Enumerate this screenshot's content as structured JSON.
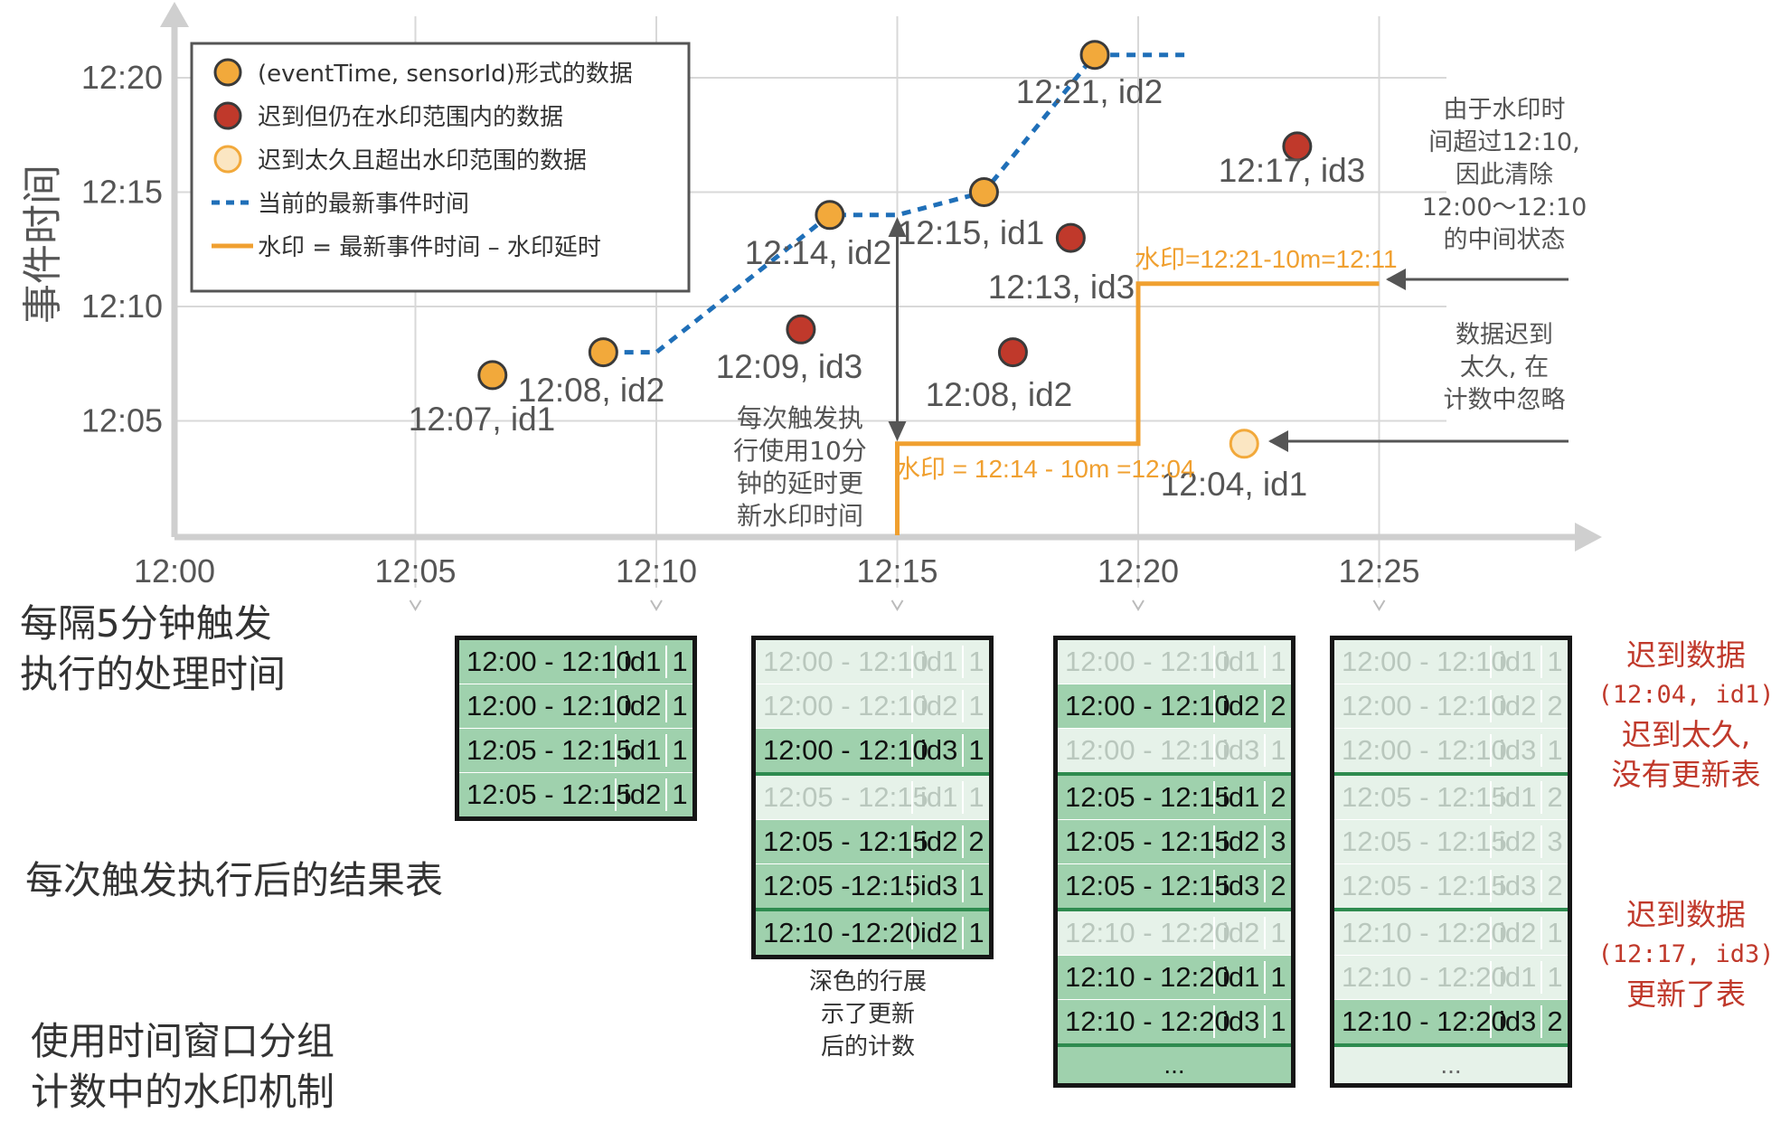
{
  "y_axis_title": "事件时间",
  "y_ticks": [
    "12:05",
    "12:10",
    "12:15",
    "12:20"
  ],
  "x_ticks": [
    "12:00",
    "12:05",
    "12:10",
    "12:15",
    "12:20",
    "12:25"
  ],
  "legend": [
    {
      "label": "(eventTime, sensorId)形式的数据",
      "marker": "orange-dot"
    },
    {
      "label": "迟到但仍在水印范围内的数据",
      "marker": "red-dot"
    },
    {
      "label": "迟到太久且超出水印范围的数据",
      "marker": "pale-dot"
    },
    {
      "label": "当前的最新事件时间",
      "marker": "blue-dashed"
    },
    {
      "label": "水印 = 最新事件时间 – 水印延时",
      "marker": "orange-line"
    }
  ],
  "colors": {
    "on_time": "#f2a93b",
    "late_within": "#c0392b",
    "too_late_fill": "#fbe6c2",
    "latest_event_line": "#1f6fb8",
    "watermark_line": "#f0a030",
    "grid": "#d8d8d8",
    "table_border": "#161616",
    "row_dark": "#9fd1ad",
    "row_light": "#e6f2e9",
    "group_separator": "#2e8b4f",
    "late_note": "#c0392b"
  },
  "chart_data": {
    "type": "scatter",
    "xlabel": "",
    "ylabel": "事件时间",
    "xlim": [
      "12:00",
      "12:27"
    ],
    "ylim": [
      "12:00",
      "12:22"
    ],
    "points": [
      {
        "x": "12:06.6",
        "y": "12:07",
        "label": "12:07, id1",
        "kind": "on_time"
      },
      {
        "x": "12:08.9",
        "y": "12:08",
        "label": "12:08, id2",
        "kind": "on_time"
      },
      {
        "x": "12:13.6",
        "y": "12:14",
        "label": "12:14, id2",
        "kind": "on_time"
      },
      {
        "x": "12:13.0",
        "y": "12:09",
        "label": "12:09, id3",
        "kind": "late_within"
      },
      {
        "x": "12:16.8",
        "y": "12:15",
        "label": "12:15, id1",
        "kind": "on_time"
      },
      {
        "x": "12:17.4",
        "y": "12:08",
        "label": "12:08, id2",
        "kind": "late_within"
      },
      {
        "x": "12:18.6",
        "y": "12:13",
        "label": "12:13, id3",
        "kind": "late_within"
      },
      {
        "x": "12:19.1",
        "y": "12:21",
        "label": "12:21, id2",
        "kind": "on_time"
      },
      {
        "x": "12:22.2",
        "y": "12:04",
        "label": "12:04, id1",
        "kind": "too_late"
      },
      {
        "x": "12:23.3",
        "y": "12:17",
        "label": "12:17, id3",
        "kind": "late_within"
      }
    ],
    "latest_event_time_line": [
      {
        "x": "12:09.0",
        "y": "12:08"
      },
      {
        "x": "12:10.0",
        "y": "12:08"
      },
      {
        "x": "12:13.6",
        "y": "12:14"
      },
      {
        "x": "12:15.0",
        "y": "12:14"
      },
      {
        "x": "12:16.8",
        "y": "12:15"
      },
      {
        "x": "12:19.1",
        "y": "12:21"
      },
      {
        "x": "12:21.0",
        "y": "12:21"
      }
    ],
    "watermark_line": [
      {
        "x": "12:15",
        "y": "12:00"
      },
      {
        "x": "12:15",
        "y": "12:04"
      },
      {
        "x": "12:20",
        "y": "12:04"
      },
      {
        "x": "12:20",
        "y": "12:11"
      },
      {
        "x": "12:25",
        "y": "12:11"
      }
    ]
  },
  "annotations": {
    "trigger_note": [
      "每次触发执",
      "行使用10分",
      "钟的延时更",
      "新水印时间"
    ],
    "watermark_label_1": "水印 = 12:14 - 10m =12:04",
    "watermark_label_2": "水印=12:21-10m=12:11",
    "cleanup_note": [
      "由于水印时",
      "间超过12:10,",
      "因此清除",
      "12:00～12:10",
      "的中间状态"
    ],
    "ignore_note": [
      "数据迟到",
      "太久, 在",
      "计数中忽略"
    ]
  },
  "left_labels": {
    "trigger_interval": [
      "每隔5分钟触发",
      "执行的处理时间"
    ],
    "result_table": "每次触发执行后的结果表",
    "caption": [
      "使用时间窗口分组",
      "计数中的水印机制"
    ]
  },
  "table_caption": [
    "深色的行展",
    "示了更新",
    "后的计数"
  ],
  "tables": [
    {
      "rows": [
        {
          "window": "12:00 - 12:10",
          "id": "id1",
          "count": "1",
          "dark": true
        },
        {
          "window": "12:00 - 12:10",
          "id": "id2",
          "count": "1",
          "dark": true
        },
        {
          "window": "12:05 - 12:15",
          "id": "id1",
          "count": "1",
          "dark": true
        },
        {
          "window": "12:05 - 12:15",
          "id": "id2",
          "count": "1",
          "dark": true
        }
      ]
    },
    {
      "rows": [
        {
          "window": "12:00 - 12:10",
          "id": "id1",
          "count": "1",
          "dark": false
        },
        {
          "window": "12:00 - 12:10",
          "id": "id2",
          "count": "1",
          "dark": false
        },
        {
          "window": "12:00 - 12:10",
          "id": "id3",
          "count": "1",
          "dark": true,
          "group_end": true
        },
        {
          "window": "12:05 - 12:15",
          "id": "id1",
          "count": "1",
          "dark": false
        },
        {
          "window": "12:05 - 12:15",
          "id": "id2",
          "count": "2",
          "dark": true
        },
        {
          "window": "12:05 -12:15",
          "id": "id3",
          "count": "1",
          "dark": true,
          "group_end": true
        },
        {
          "window": "12:10 -12:20",
          "id": "id2",
          "count": "1",
          "dark": true
        }
      ]
    },
    {
      "rows": [
        {
          "window": "12:00 - 12:10",
          "id": "id1",
          "count": "1",
          "dark": false
        },
        {
          "window": "12:00 - 12:10",
          "id": "id2",
          "count": "2",
          "dark": true
        },
        {
          "window": "12:00 - 12:10",
          "id": "id3",
          "count": "1",
          "dark": false,
          "group_end": true
        },
        {
          "window": "12:05 - 12:15",
          "id": "id1",
          "count": "2",
          "dark": true
        },
        {
          "window": "12:05 - 12:15",
          "id": "id2",
          "count": "3",
          "dark": true
        },
        {
          "window": "12:05 - 12:15",
          "id": "id3",
          "count": "2",
          "dark": true,
          "group_end": true
        },
        {
          "window": "12:10 - 12:20",
          "id": "id2",
          "count": "1",
          "dark": false
        },
        {
          "window": "12:10 - 12:20",
          "id": "id1",
          "count": "1",
          "dark": true
        },
        {
          "window": "12:10 - 12:20",
          "id": "id3",
          "count": "1",
          "dark": true,
          "group_end": true
        }
      ],
      "ellipsis": "..."
    },
    {
      "rows": [
        {
          "window": "12:00 - 12:10",
          "id": "id1",
          "count": "1",
          "dark": false
        },
        {
          "window": "12:00 - 12:10",
          "id": "id2",
          "count": "2",
          "dark": false
        },
        {
          "window": "12:00 - 12:10",
          "id": "id3",
          "count": "1",
          "dark": false,
          "group_end": true
        },
        {
          "window": "12:05 - 12:15",
          "id": "id1",
          "count": "2",
          "dark": false
        },
        {
          "window": "12:05 - 12:15",
          "id": "id2",
          "count": "3",
          "dark": false
        },
        {
          "window": "12:05 - 12:15",
          "id": "id3",
          "count": "2",
          "dark": false,
          "group_end": true
        },
        {
          "window": "12:10 - 12:20",
          "id": "id2",
          "count": "1",
          "dark": false
        },
        {
          "window": "12:10 - 12:20",
          "id": "id1",
          "count": "1",
          "dark": false
        },
        {
          "window": "12:10 - 12:20",
          "id": "id3",
          "count": "2",
          "dark": true,
          "group_end": true
        }
      ],
      "ellipsis": "..."
    }
  ],
  "late_notes": [
    {
      "title": "迟到数据",
      "detail": "(12:04, id1)",
      "lines": [
        "迟到太久,",
        "没有更新表"
      ]
    },
    {
      "title": "迟到数据",
      "detail": "(12:17, id3)",
      "lines": [
        "更新了表"
      ]
    }
  ]
}
